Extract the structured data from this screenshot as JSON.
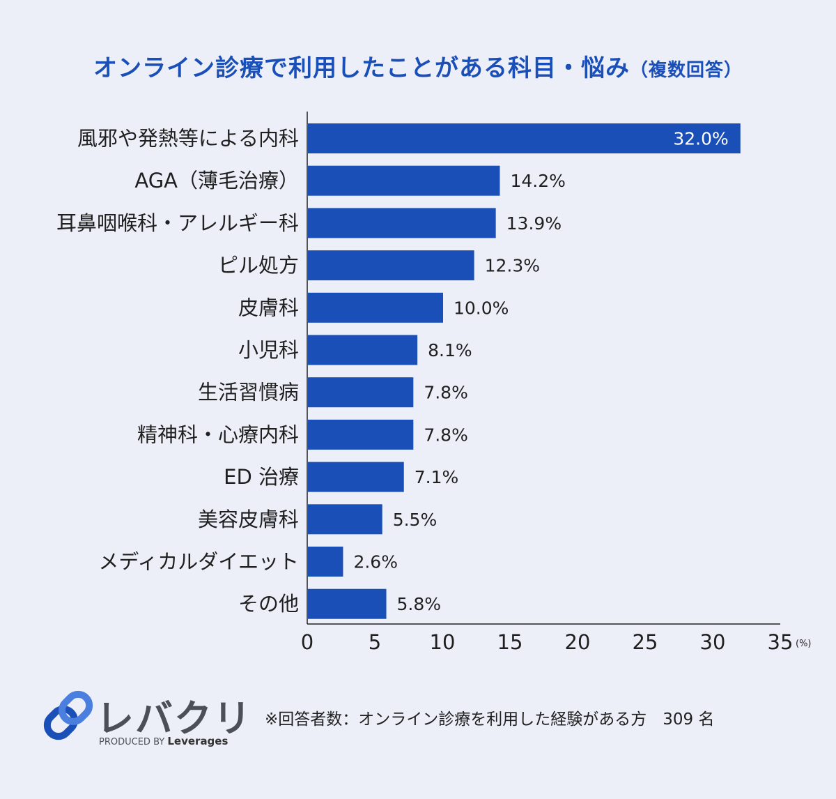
{
  "title": "オンライン診療で利用したことがある科目・悩み",
  "title_suffix": "（複数回答）",
  "chart_data": {
    "type": "bar",
    "orientation": "horizontal",
    "categories": [
      "風邪や発熱等による内科",
      "AGA（薄毛治療）",
      "耳鼻咽喉科・アレルギー科",
      "ピル処方",
      "皮膚科",
      "小児科",
      "生活習慣病",
      "精神科・心療内科",
      "ED 治療",
      "美容皮膚科",
      "メディカルダイエット",
      "その他"
    ],
    "values": [
      32.0,
      14.2,
      13.9,
      12.3,
      10.0,
      8.1,
      7.8,
      7.8,
      7.1,
      5.5,
      2.6,
      5.8
    ],
    "value_labels": [
      "32.0%",
      "14.2%",
      "13.9%",
      "12.3%",
      "10.0%",
      "8.1%",
      "7.8%",
      "7.8%",
      "7.1%",
      "5.5%",
      "2.6%",
      "5.8%"
    ],
    "xlim": [
      0,
      35
    ],
    "xticks": [
      0,
      5,
      10,
      15,
      20,
      25,
      30,
      35
    ],
    "x_unit": "(%)",
    "bar_color": "#1b4fb8",
    "grid": false
  },
  "logo": {
    "name": "レバクリ",
    "produced_by": "PRODUCED BY",
    "brand": "Leverages"
  },
  "note": "※回答者数：オンライン診療を利用した経験がある方　309 名"
}
